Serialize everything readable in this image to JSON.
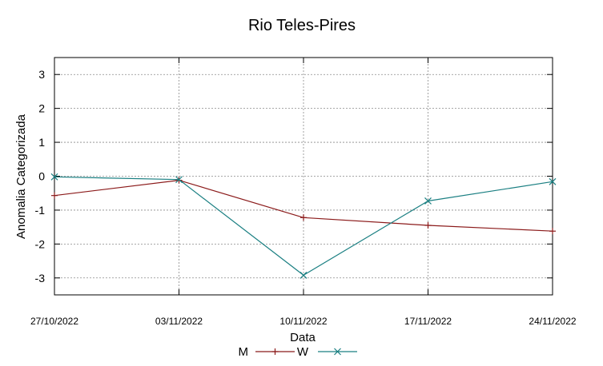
{
  "chart_data": {
    "type": "line",
    "title": "Rio Teles-Pires",
    "xlabel": "Data",
    "ylabel": "Anomalia Categorizada",
    "x_tick_labels": [
      "27/10/2022",
      "03/11/2022",
      "10/11/2022",
      "17/11/2022",
      "24/11/2022"
    ],
    "y_ticks": [
      3,
      2,
      1,
      0,
      -1,
      -2,
      -3
    ],
    "y_tick_labels": [
      "3",
      "2",
      "1",
      "0",
      "-1",
      "-2",
      "-3"
    ],
    "ylim": [
      -3.5,
      3.5
    ],
    "grid": true,
    "legend_position": "bottom",
    "series": [
      {
        "name": "M",
        "color": "#8b1a1a",
        "marker": "plus",
        "values": [
          -0.57,
          -0.12,
          -1.22,
          -1.45,
          -1.62
        ]
      },
      {
        "name": "W",
        "color": "#1a7f82",
        "marker": "cross",
        "values": [
          -0.02,
          -0.1,
          -2.92,
          -0.73,
          -0.16
        ]
      }
    ]
  }
}
